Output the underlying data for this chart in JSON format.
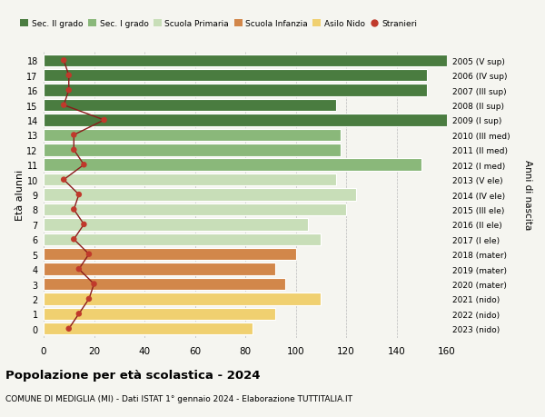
{
  "ages": [
    18,
    17,
    16,
    15,
    14,
    13,
    12,
    11,
    10,
    9,
    8,
    7,
    6,
    5,
    4,
    3,
    2,
    1,
    0
  ],
  "right_labels": [
    "2005 (V sup)",
    "2006 (IV sup)",
    "2007 (III sup)",
    "2008 (II sup)",
    "2009 (I sup)",
    "2010 (III med)",
    "2011 (II med)",
    "2012 (I med)",
    "2013 (V ele)",
    "2014 (IV ele)",
    "2015 (III ele)",
    "2016 (II ele)",
    "2017 (I ele)",
    "2018 (mater)",
    "2019 (mater)",
    "2020 (mater)",
    "2021 (nido)",
    "2022 (nido)",
    "2023 (nido)"
  ],
  "bar_values": [
    160,
    152,
    152,
    116,
    162,
    118,
    118,
    150,
    116,
    124,
    120,
    105,
    110,
    100,
    92,
    96,
    110,
    92,
    83
  ],
  "bar_colors": [
    "#4a7c40",
    "#4a7c40",
    "#4a7c40",
    "#4a7c40",
    "#4a7c40",
    "#8ab87a",
    "#8ab87a",
    "#8ab87a",
    "#c8deb8",
    "#c8deb8",
    "#c8deb8",
    "#c8deb8",
    "#c8deb8",
    "#d2874a",
    "#d2874a",
    "#d2874a",
    "#f0d070",
    "#f0d070",
    "#f0d070"
  ],
  "stranieri_values": [
    8,
    10,
    10,
    8,
    24,
    12,
    12,
    16,
    8,
    14,
    12,
    16,
    12,
    18,
    14,
    20,
    18,
    14,
    10
  ],
  "legend_labels": [
    "Sec. II grado",
    "Sec. I grado",
    "Scuola Primaria",
    "Scuola Infanzia",
    "Asilo Nido",
    "Stranieri"
  ],
  "legend_colors": [
    "#4a7c40",
    "#8ab87a",
    "#c8deb8",
    "#d2874a",
    "#f0d070",
    "#c0392b"
  ],
  "ylabel_left": "Età alunni",
  "ylabel_right": "Anni di nascita",
  "xlim": [
    0,
    160
  ],
  "xticks": [
    0,
    20,
    40,
    60,
    80,
    100,
    120,
    140,
    160
  ],
  "title": "Popolazione per età scolastica - 2024",
  "subtitle": "COMUNE DI MEDIGLIA (MI) - Dati ISTAT 1° gennaio 2024 - Elaborazione TUTTITALIA.IT",
  "bg_color": "#f5f5f0",
  "stranieri_color": "#c0392b",
  "stranieri_line_color": "#8b1a1a"
}
